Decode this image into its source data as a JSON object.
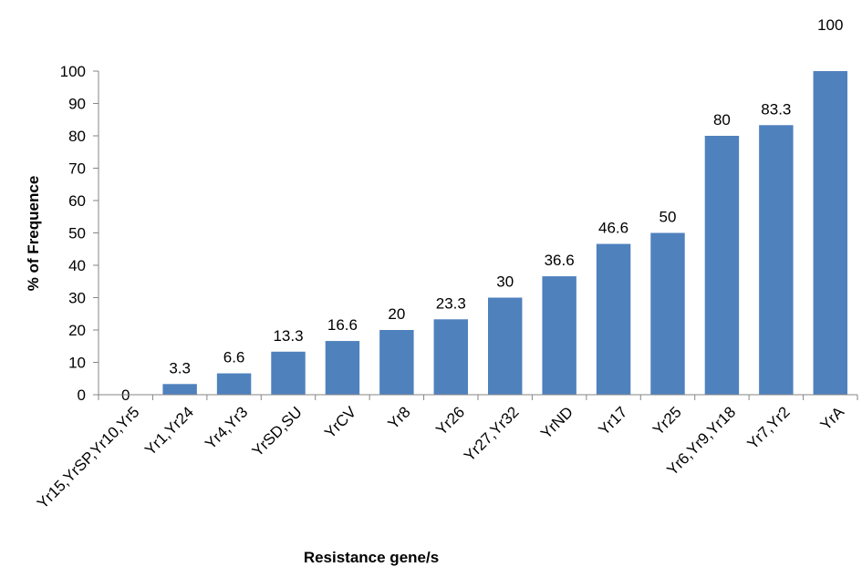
{
  "chart_data": {
    "type": "bar",
    "title": "",
    "xlabel": "Resistance gene/s",
    "ylabel": "% of Frequence",
    "ylim": [
      0,
      100
    ],
    "yticks": [
      0,
      10,
      20,
      30,
      40,
      50,
      60,
      70,
      80,
      90,
      100
    ],
    "grid": false,
    "legend": "none",
    "bar_color": "#4f81bd",
    "categories": [
      "Yr15,YrSP,Yr10,Yr5",
      "Yr1,Yr24",
      "Yr4,Yr3",
      "YrSD,SU",
      "YrCV",
      "Yr8",
      "Yr26",
      "Yr27,Yr32",
      "YrND",
      "Yr17",
      "Yr25",
      "Yr6,Yr9,Yr18",
      "Yr7,Yr2",
      "YrA"
    ],
    "values": [
      0,
      3.3,
      6.6,
      13.3,
      16.6,
      20,
      23.3,
      30,
      36.6,
      46.6,
      50,
      80,
      83.3,
      100
    ],
    "data_labels": [
      "0",
      "3.3",
      "6.6",
      "13.3",
      "16.6",
      "20",
      "23.3",
      "30",
      "36.6",
      "46.6",
      "50",
      "80",
      "83.3",
      "100"
    ]
  }
}
